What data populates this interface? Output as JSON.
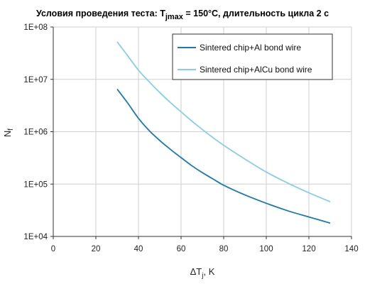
{
  "title": {
    "prefix": "Условия проведения теста: T",
    "sub": "jmax",
    "suffix": " = 150°C, длительность цикла 2 с"
  },
  "colors": {
    "series1": "#1a7bb0",
    "series2": "#86cfe8",
    "grid": "#cfcfcf",
    "axis": "#333333"
  },
  "chart_data": {
    "type": "line",
    "title": "Условия проведения теста: Tjmax = 150°C, длительность цикла 2 с",
    "xlabel": {
      "main": "ΔT",
      "sub": "j",
      "tail": ", K"
    },
    "ylabel": {
      "main": "N",
      "sub": "f"
    },
    "xlim": [
      0,
      140
    ],
    "ylim": [
      10000,
      100000000
    ],
    "y_scale": "log",
    "grid": true,
    "legend_position": "top-right",
    "x_ticks": [
      "0",
      "20",
      "40",
      "60",
      "80",
      "100",
      "120",
      "140"
    ],
    "y_ticks": [
      "1E+04",
      "1E+05",
      "1E+06",
      "1E+07",
      "1E+08"
    ],
    "series": [
      {
        "name": "Sintered chip+Al bond wire",
        "x": [
          30,
          35,
          40,
          45,
          50,
          55,
          60,
          65,
          70,
          75,
          80,
          90,
          100,
          110,
          120,
          130
        ],
        "y": [
          6500000,
          3500000,
          1800000,
          1050000,
          680000,
          460000,
          320000,
          225000,
          165000,
          125000,
          95000,
          62000,
          43000,
          31000,
          23500,
          18000
        ]
      },
      {
        "name": "Sintered chip+AlCu bond wire",
        "x": [
          30,
          35,
          40,
          45,
          50,
          55,
          60,
          65,
          70,
          75,
          80,
          90,
          100,
          110,
          120,
          130
        ],
        "y": [
          52000000,
          28000000,
          15000000,
          9000000,
          5600000,
          3600000,
          2400000,
          1600000,
          1100000,
          770000,
          550000,
          300000,
          170000,
          105000,
          68000,
          46000
        ]
      }
    ]
  }
}
